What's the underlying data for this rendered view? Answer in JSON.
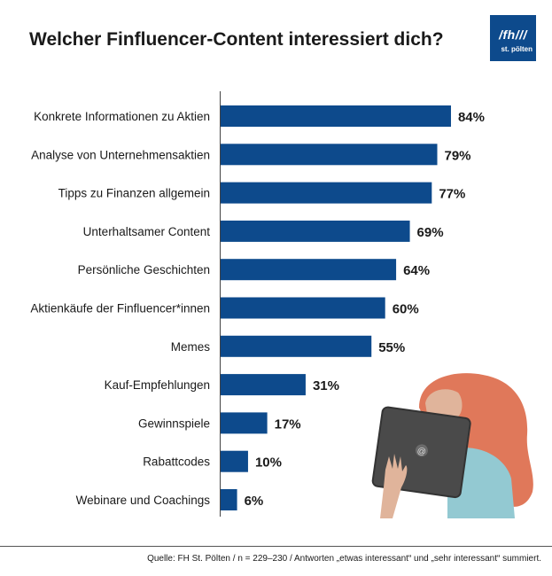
{
  "header": {
    "title": "Welcher Finfluencer-Content interessiert dich?"
  },
  "logo": {
    "main": "/fh///",
    "sub": "st. pölten"
  },
  "chart_data": {
    "type": "bar",
    "orientation": "horizontal",
    "title": "Welcher Finfluencer-Content interessiert dich?",
    "unit": "%",
    "xlim": [
      0,
      100
    ],
    "grid": false,
    "categories": [
      "Konkrete Informationen zu Aktien",
      "Analyse von Unternehmensaktien",
      "Tipps zu Finanzen allgemein",
      "Unterhaltsamer Content",
      "Persönliche Geschichten",
      "Aktienkäufe der Finfluencer*innen",
      "Memes",
      "Kauf-Empfehlungen",
      "Gewinnspiele",
      "Rabattcodes",
      "Webinare und Coachings"
    ],
    "values": [
      84,
      79,
      77,
      69,
      64,
      60,
      55,
      31,
      17,
      10,
      6
    ],
    "value_labels": [
      "84%",
      "79%",
      "77%",
      "69%",
      "64%",
      "60%",
      "55%",
      "31%",
      "17%",
      "10%",
      "6%"
    ],
    "bar_color": "#0d4a8c"
  },
  "footer": {
    "source": "Quelle: FH St. Pölten / n = 229–230 / Antworten „etwas interessant“ und „sehr interessant“ summiert."
  },
  "colors": {
    "brand": "#0d4a8c",
    "hair": "#e0785a",
    "sweater": "#93c9d2",
    "skin": "#e0b49b",
    "tablet": "#4a4a4a"
  },
  "icons": {
    "tablet_logo": "at-sign-icon"
  }
}
